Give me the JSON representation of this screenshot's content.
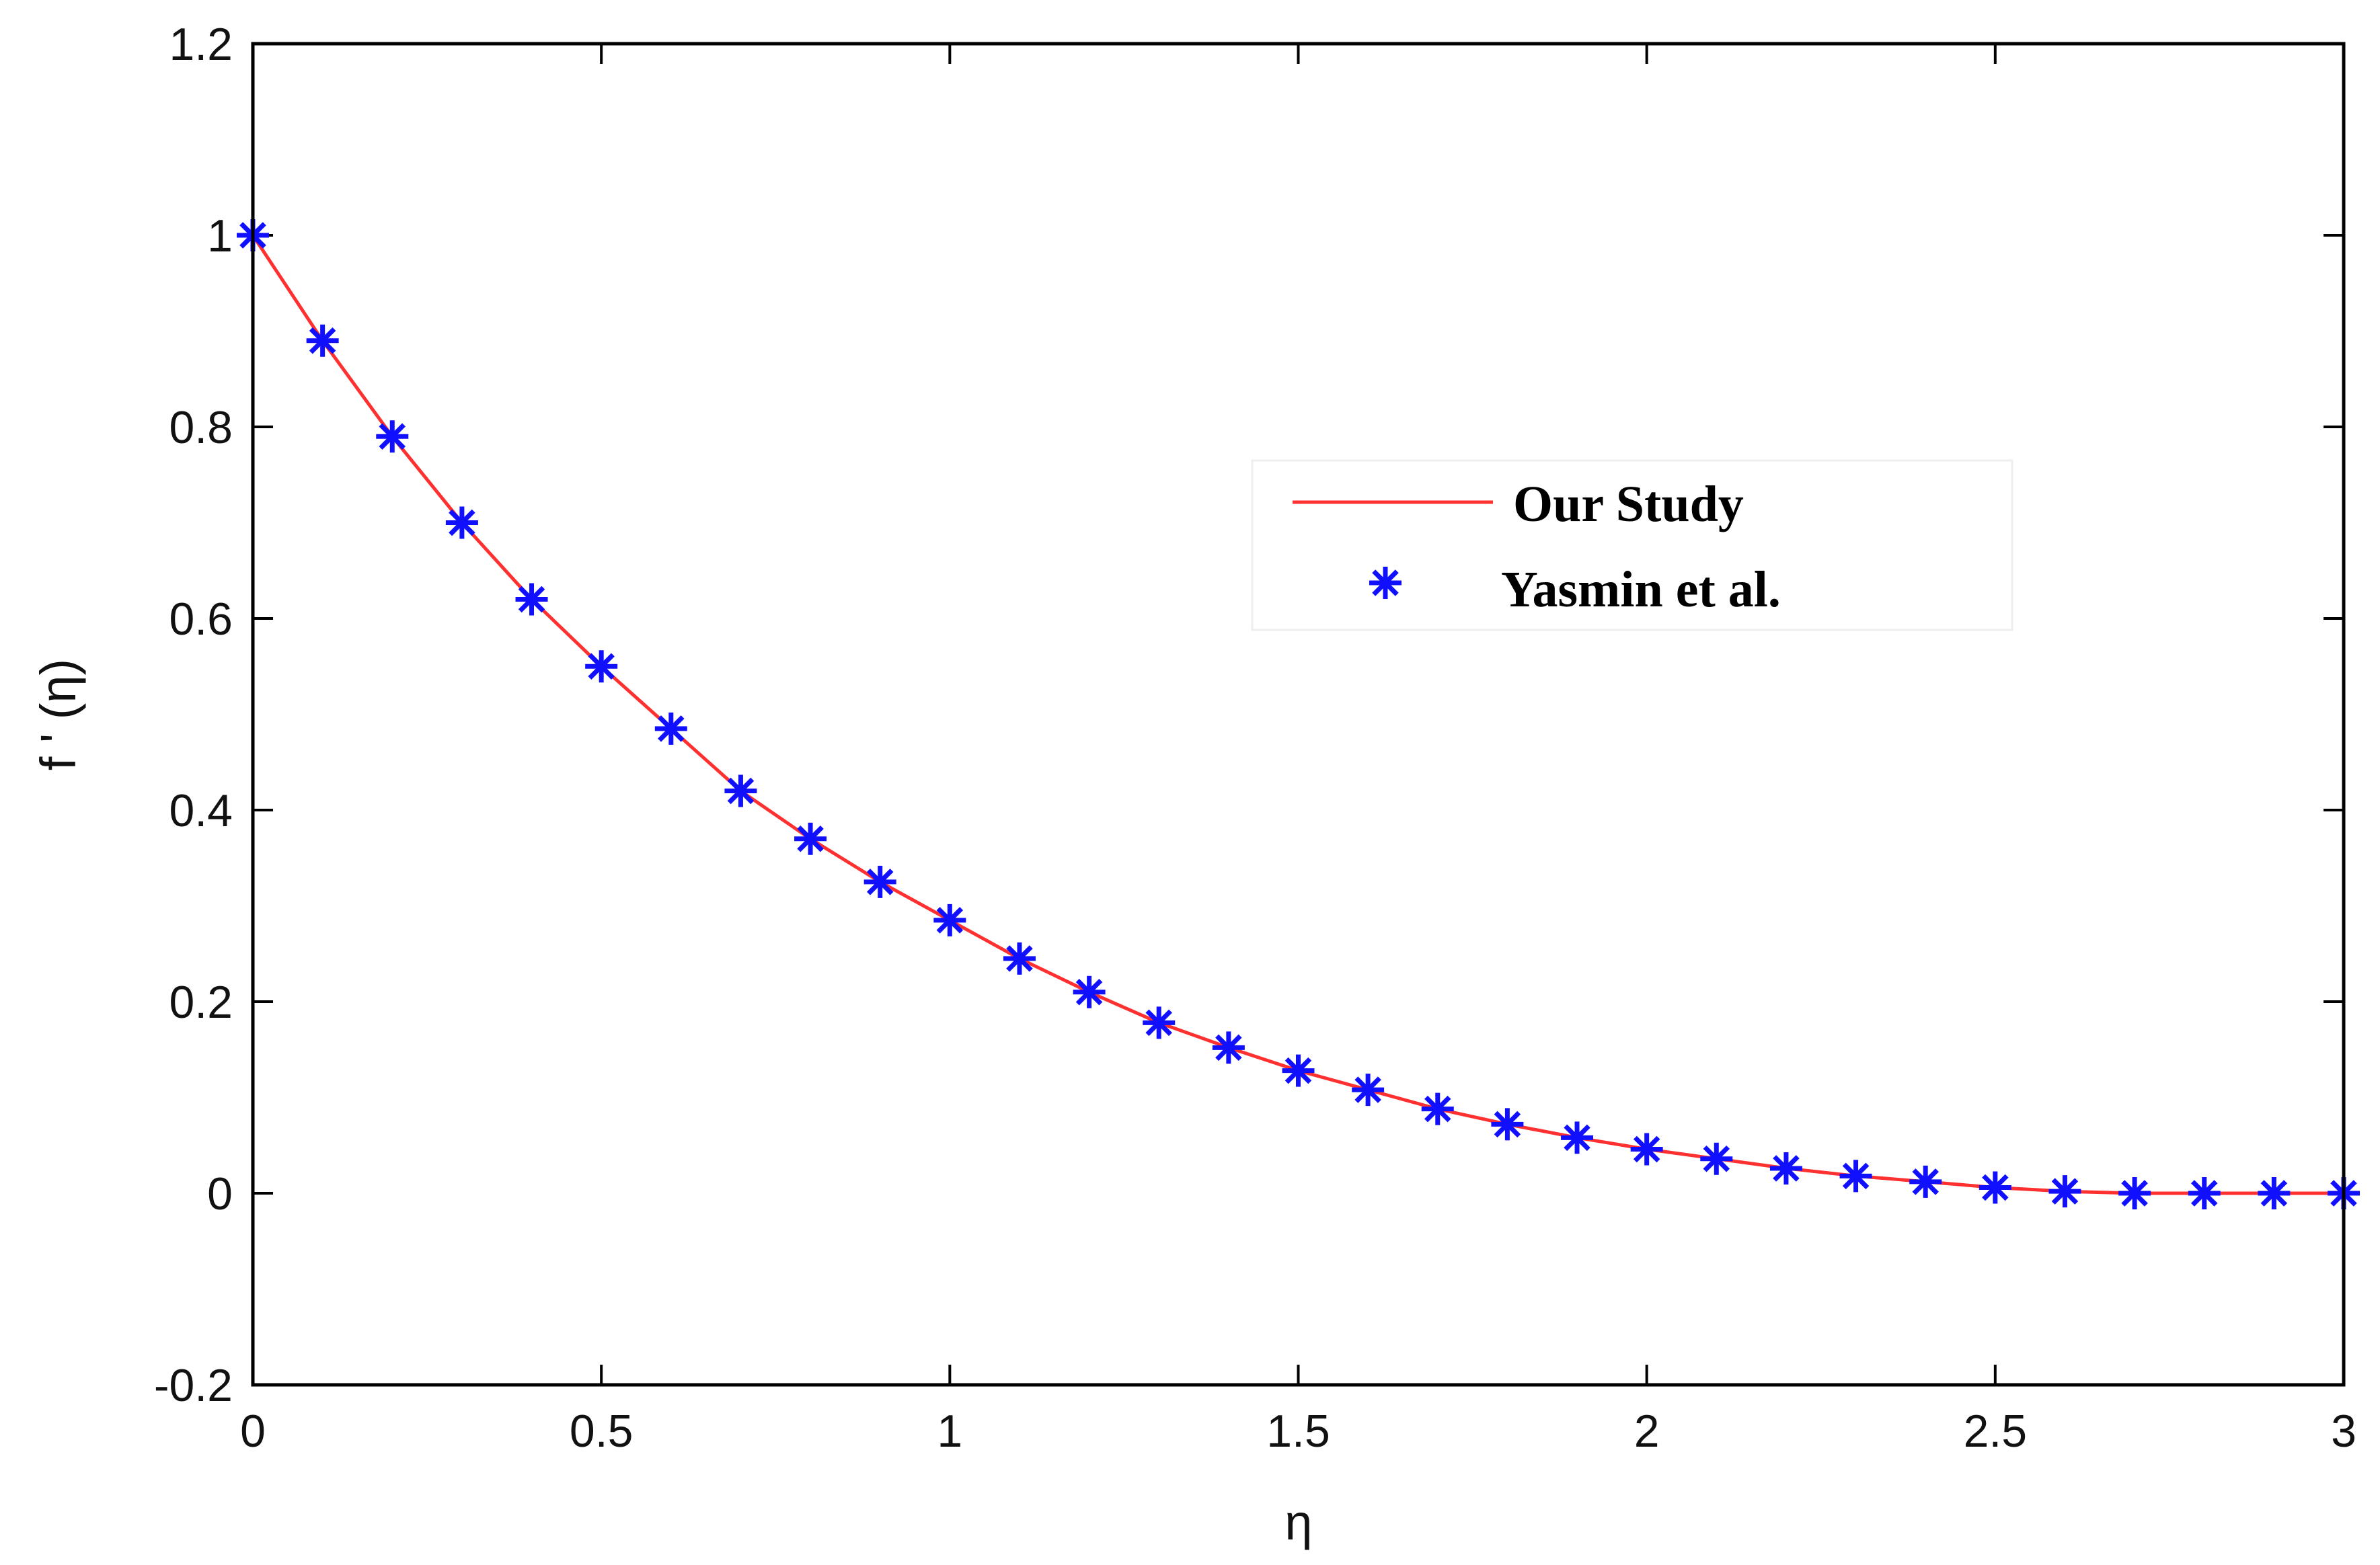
{
  "chart_data": {
    "type": "line",
    "xlabel": "η",
    "ylabel": "f ' (η)",
    "xlim": [
      0,
      3
    ],
    "ylim": [
      -0.2,
      1.2
    ],
    "xticks": [
      0,
      0.5,
      1,
      1.5,
      2,
      2.5,
      3
    ],
    "xtick_labels": [
      "0",
      "0.5",
      "1",
      "1.5",
      "2",
      "2.5",
      "3"
    ],
    "yticks": [
      -0.2,
      0,
      0.2,
      0.4,
      0.6,
      0.8,
      1,
      1.2
    ],
    "ytick_labels": [
      "-0.2",
      "0",
      "0.2",
      "0.4",
      "0.6",
      "0.8",
      "1",
      "1.2"
    ],
    "grid": false,
    "legend_position": "upper-right-center",
    "series": [
      {
        "name": "Our Study",
        "style": "line",
        "color": "#ff3030",
        "x": [
          0,
          0.1,
          0.2,
          0.3,
          0.4,
          0.5,
          0.6,
          0.7,
          0.8,
          0.9,
          1.0,
          1.1,
          1.2,
          1.3,
          1.4,
          1.5,
          1.6,
          1.7,
          1.8,
          1.9,
          2.0,
          2.1,
          2.2,
          2.3,
          2.4,
          2.5,
          2.6,
          2.7,
          2.8,
          2.9,
          3.0
        ],
        "y": [
          1.0,
          0.89,
          0.79,
          0.7,
          0.62,
          0.55,
          0.485,
          0.42,
          0.37,
          0.325,
          0.285,
          0.245,
          0.21,
          0.178,
          0.152,
          0.128,
          0.108,
          0.088,
          0.072,
          0.058,
          0.046,
          0.036,
          0.026,
          0.018,
          0.012,
          0.006,
          0.002,
          0.0,
          0.0,
          0.0,
          0.0
        ]
      },
      {
        "name": "Yasmin et al.",
        "style": "marker",
        "marker": "*",
        "color": "#1010ff",
        "x": [
          0,
          0.1,
          0.2,
          0.3,
          0.4,
          0.5,
          0.6,
          0.7,
          0.8,
          0.9,
          1.0,
          1.1,
          1.2,
          1.3,
          1.4,
          1.5,
          1.6,
          1.7,
          1.8,
          1.9,
          2.0,
          2.1,
          2.2,
          2.3,
          2.4,
          2.5,
          2.6,
          2.7,
          2.8,
          2.9,
          3.0
        ],
        "y": [
          1.0,
          0.89,
          0.79,
          0.7,
          0.62,
          0.55,
          0.485,
          0.42,
          0.37,
          0.325,
          0.285,
          0.245,
          0.21,
          0.178,
          0.152,
          0.128,
          0.108,
          0.088,
          0.072,
          0.058,
          0.046,
          0.036,
          0.026,
          0.018,
          0.012,
          0.006,
          0.002,
          0.0,
          0.0,
          0.0,
          0.0
        ]
      }
    ]
  }
}
